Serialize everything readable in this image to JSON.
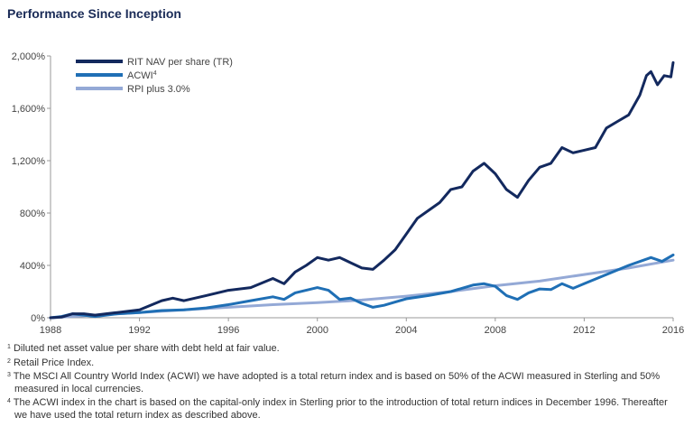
{
  "title": "Performance Since Inception",
  "chart_data": {
    "type": "line",
    "title": "Performance Since Inception",
    "xlabel": "",
    "ylabel": "",
    "xlim": [
      1988,
      2016
    ],
    "ylim": [
      0,
      2000
    ],
    "x_ticks": [
      "1988",
      "1992",
      "1996",
      "2000",
      "2004",
      "2008",
      "2012",
      "2016"
    ],
    "y_ticks": [
      "0%",
      "400%",
      "800%",
      "1,200%",
      "1,600%",
      "2,000%"
    ],
    "grid": false,
    "legend_position": "top-left",
    "colors": {
      "rit": "#13295e",
      "acwi": "#1f6fb5",
      "rpi": "#94a9d6"
    },
    "legend": [
      {
        "key": "rit",
        "label": "RIT NAV per share (TR)",
        "sup": ""
      },
      {
        "key": "acwi",
        "label": "ACWI",
        "sup": "4"
      },
      {
        "key": "rpi",
        "label": "RPI plus 3.0%",
        "sup": ""
      }
    ],
    "series": [
      {
        "key": "rit",
        "name": "RIT NAV per share (TR)",
        "x": [
          1988,
          1988.5,
          1989,
          1989.5,
          1990,
          1990.5,
          1991,
          1992,
          1993,
          1993.5,
          1994,
          1995,
          1996,
          1997,
          1998,
          1998.5,
          1999,
          1999.5,
          2000,
          2000.5,
          2001,
          2001.5,
          2002,
          2002.5,
          2003,
          2003.5,
          2004,
          2004.5,
          2005,
          2005.5,
          2006,
          2006.5,
          2007,
          2007.5,
          2008,
          2008.5,
          2009,
          2009.5,
          2010,
          2010.5,
          2011,
          2011.5,
          2012,
          2012.5,
          2013,
          2013.5,
          2014,
          2014.5,
          2014.8,
          2015,
          2015.3,
          2015.6,
          2015.9,
          2016
        ],
        "values": [
          0,
          5,
          30,
          30,
          20,
          30,
          40,
          60,
          130,
          150,
          130,
          170,
          210,
          230,
          300,
          260,
          350,
          400,
          460,
          440,
          460,
          420,
          380,
          370,
          440,
          520,
          640,
          760,
          820,
          880,
          980,
          1000,
          1120,
          1180,
          1100,
          980,
          920,
          1050,
          1150,
          1180,
          1300,
          1260,
          1280,
          1300,
          1450,
          1500,
          1550,
          1700,
          1850,
          1880,
          1780,
          1850,
          1840,
          1950
        ]
      },
      {
        "key": "acwi",
        "name": "ACWI",
        "x": [
          1988,
          1988.5,
          1989,
          1990,
          1990.5,
          1991,
          1992,
          1993,
          1994,
          1995,
          1996,
          1997,
          1998,
          1998.5,
          1999,
          2000,
          2000.5,
          2001,
          2001.5,
          2002,
          2002.5,
          2003,
          2003.5,
          2004,
          2005,
          2006,
          2007,
          2007.5,
          2008,
          2008.5,
          2009,
          2009.5,
          2010,
          2010.5,
          2011,
          2011.5,
          2012,
          2013,
          2014,
          2015,
          2015.5,
          2016
        ],
        "values": [
          0,
          10,
          30,
          10,
          20,
          30,
          40,
          55,
          60,
          75,
          100,
          130,
          160,
          140,
          190,
          230,
          210,
          140,
          150,
          110,
          80,
          95,
          120,
          145,
          170,
          200,
          250,
          260,
          240,
          170,
          140,
          190,
          220,
          215,
          260,
          225,
          260,
          330,
          400,
          460,
          430,
          480
        ]
      },
      {
        "key": "rpi",
        "name": "RPI plus 3.0%",
        "x": [
          1988,
          1990,
          1992,
          1994,
          1996,
          1998,
          2000,
          2002,
          2004,
          2006,
          2008,
          2010,
          2012,
          2014,
          2016
        ],
        "values": [
          0,
          20,
          40,
          60,
          80,
          100,
          115,
          135,
          165,
          200,
          245,
          280,
          330,
          380,
          440
        ]
      }
    ]
  },
  "footnotes": [
    {
      "num": "1",
      "text": "Diluted net asset value per share with debt held at fair value."
    },
    {
      "num": "2",
      "text": "Retail Price Index."
    },
    {
      "num": "3",
      "text": "The MSCI All Country World Index (ACWI) we have adopted is a total return index and is based on 50% of the ACWI measured in Sterling and 50% measured in local currencies."
    },
    {
      "num": "4",
      "text": "The ACWI index in the chart is based on the capital-only index in Sterling prior to the introduction of total return indices in December 1996. Thereafter we have used the total return index as described above."
    }
  ]
}
